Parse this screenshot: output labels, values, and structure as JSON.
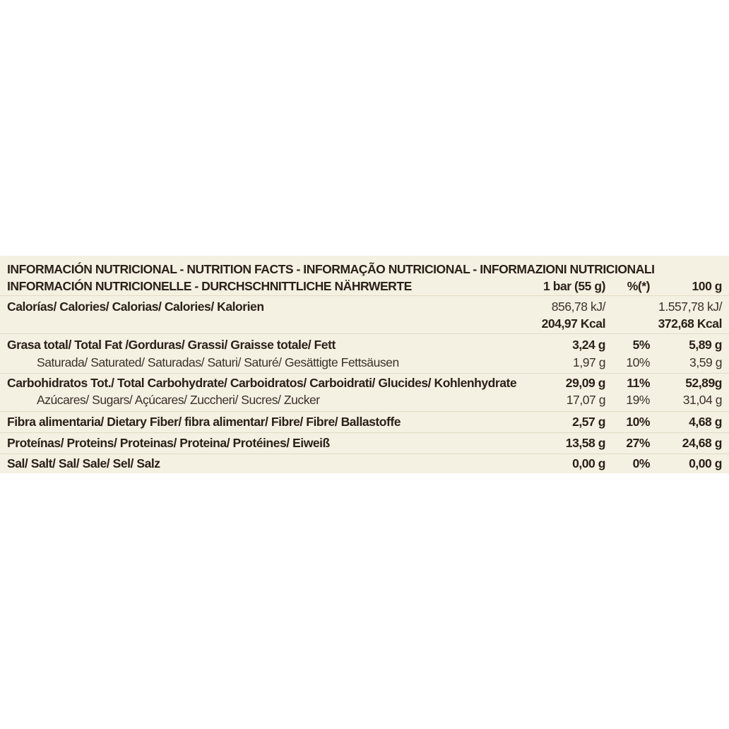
{
  "header": {
    "title_line1": "INFORMACIÓN NUTRICIONAL - NUTRITION FACTS - INFORMAÇÃO NUTRICIONAL - INFORMAZIONI NUTRICIONALI",
    "title_line2": "INFORMACIÓN NUTRICIONELLE - DURCHSCHNITTLICHE NÄHRWERTE",
    "col_serving": "1 bar (55 g)",
    "col_percent": "%(*)",
    "col_100g": "100 g"
  },
  "calories": {
    "label": "Calorías/ Calories/ Calorias/ Calories/ Kalorien",
    "serving_kj": "856,78 kJ/",
    "serving_kcal": "204,97 Kcal",
    "per100_kj": "1.557,78 kJ/",
    "per100_kcal": "372,68 Kcal"
  },
  "rows": [
    {
      "label": "Grasa total/ Total Fat /Gorduras/ Grassi/ Graisse totale/ Fett",
      "serving": "3,24 g",
      "percent": "5%",
      "per100": "5,89 g"
    },
    {
      "label": "Saturada/ Saturated/ Saturadas/ Saturi/ Saturé/ Gesättigte Fettsäusen",
      "serving": "1,97 g",
      "percent": "10%",
      "per100": "3,59 g"
    },
    {
      "label": "Carbohidratos Tot./ Total Carbohydrate/ Carboidratos/ Carboidrati/ Glucides/ Kohlenhydrate",
      "serving": "29,09 g",
      "percent": "11%",
      "per100": "52,89g"
    },
    {
      "label": "Azúcares/ Sugars/ Açúcares/ Zuccheri/ Sucres/ Zucker",
      "serving": "17,07 g",
      "percent": "19%",
      "per100": "31,04 g"
    },
    {
      "label": "Fibra alimentaria/ Dietary Fiber/ fibra alimentar/ Fibre/ Fibre/ Ballastoffe",
      "serving": "2,57 g",
      "percent": "10%",
      "per100": "4,68 g"
    },
    {
      "label": "Proteínas/ Proteins/ Proteinas/ Proteina/  Protéines/ Eiweiß",
      "serving": "13,58 g",
      "percent": "27%",
      "per100": "24,68 g"
    },
    {
      "label": "Sal/ Salt/ Sal/ Sale/ Sel/ Salz",
      "serving": "0,00 g",
      "percent": "0%",
      "per100": "0,00 g"
    }
  ],
  "colors": {
    "background": "#f4f0e2",
    "text": "#2a2118",
    "divider": "#e2dcc6"
  }
}
